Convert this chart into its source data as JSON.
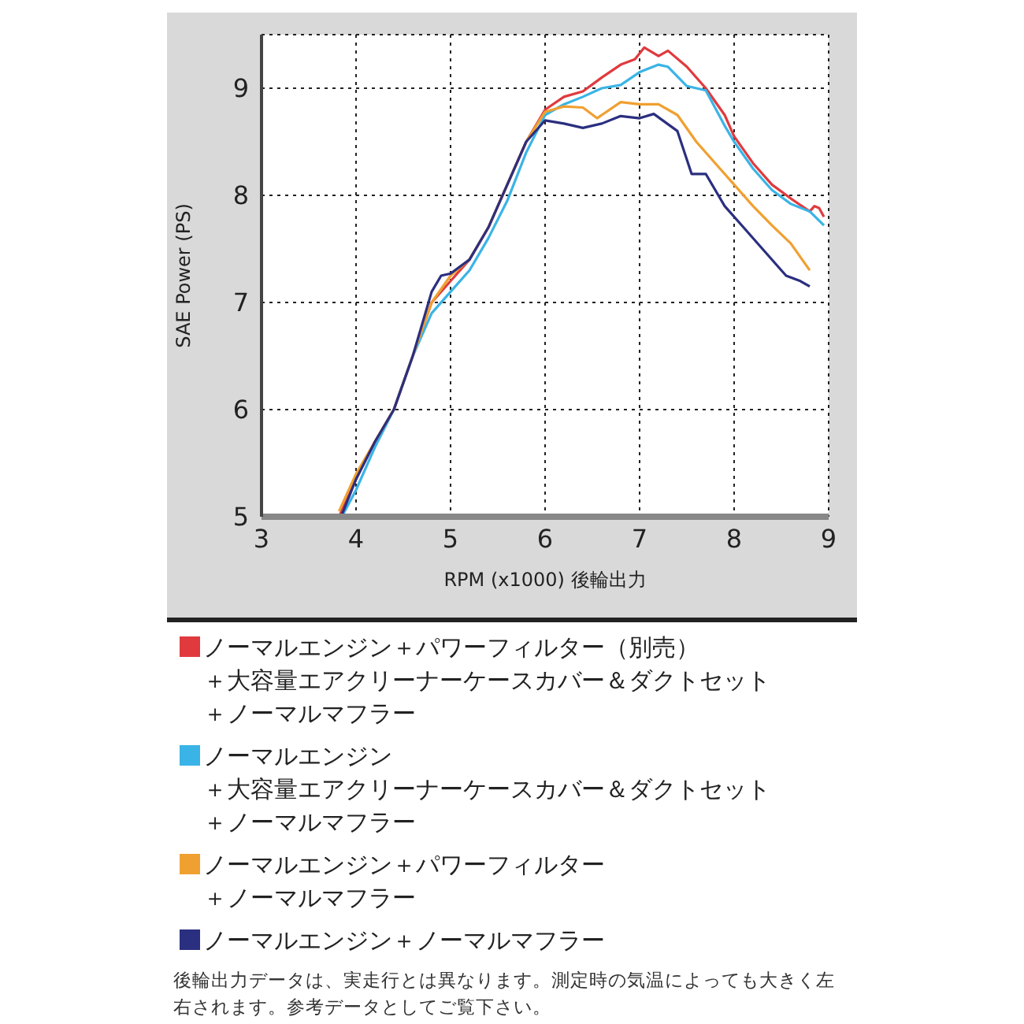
{
  "chart_data": {
    "type": "line",
    "xlabel": "RPM (x1000) 後輪出力",
    "ylabel": "SAE Power (PS)",
    "xlim": [
      3,
      9
    ],
    "ylim": [
      5,
      9.5
    ],
    "xticks": [
      3,
      4,
      5,
      6,
      7,
      8,
      9
    ],
    "yticks": [
      5,
      6,
      7,
      8,
      9
    ],
    "grid": true,
    "line_style": "solid",
    "marker": "none",
    "legend": "bottom",
    "series": [
      {
        "name": "ノーマルエンジン＋パワーフィルター（別売）＋大容量エアクリーナーケースカバー＆ダクトセット＋ノーマルマフラー",
        "color": "#e03a3e",
        "x": [
          3.82,
          4.0,
          4.2,
          4.4,
          4.6,
          4.8,
          5.0,
          5.2,
          5.4,
          5.6,
          5.8,
          6.0,
          6.2,
          6.4,
          6.6,
          6.8,
          6.95,
          7.05,
          7.2,
          7.3,
          7.5,
          7.7,
          7.9,
          8.0,
          8.2,
          8.4,
          8.6,
          8.8,
          8.85,
          8.9,
          8.95
        ],
        "values": [
          5.0,
          5.35,
          5.7,
          6.0,
          6.5,
          7.0,
          7.2,
          7.4,
          7.7,
          8.1,
          8.5,
          8.8,
          8.92,
          8.97,
          9.1,
          9.22,
          9.27,
          9.38,
          9.3,
          9.35,
          9.2,
          9.0,
          8.75,
          8.55,
          8.3,
          8.1,
          7.97,
          7.85,
          7.9,
          7.88,
          7.8
        ]
      },
      {
        "name": "ノーマルエンジン＋大容量エアクリーナーケースカバー＆ダクトセット＋ノーマルマフラー",
        "color": "#3ab4e6",
        "x": [
          3.85,
          4.0,
          4.2,
          4.4,
          4.6,
          4.8,
          5.0,
          5.2,
          5.4,
          5.6,
          5.8,
          6.0,
          6.2,
          6.4,
          6.6,
          6.8,
          7.0,
          7.2,
          7.3,
          7.5,
          7.7,
          7.9,
          8.0,
          8.2,
          8.4,
          8.6,
          8.8,
          8.95
        ],
        "values": [
          5.0,
          5.25,
          5.65,
          6.0,
          6.5,
          6.9,
          7.1,
          7.3,
          7.6,
          7.95,
          8.4,
          8.75,
          8.85,
          8.92,
          9.0,
          9.03,
          9.15,
          9.22,
          9.2,
          9.02,
          8.98,
          8.65,
          8.5,
          8.25,
          8.05,
          7.92,
          7.85,
          7.72
        ]
      },
      {
        "name": "ノーマルエンジン＋パワーフィルター＋ノーマルマフラー",
        "color": "#f0a030",
        "x": [
          3.82,
          4.0,
          4.2,
          4.4,
          4.6,
          4.8,
          5.0,
          5.2,
          5.4,
          5.6,
          5.8,
          6.0,
          6.2,
          6.4,
          6.55,
          6.8,
          7.0,
          7.2,
          7.4,
          7.6,
          7.8,
          8.0,
          8.2,
          8.4,
          8.6,
          8.8
        ],
        "values": [
          5.05,
          5.4,
          5.7,
          6.0,
          6.5,
          7.0,
          7.25,
          7.4,
          7.7,
          8.1,
          8.5,
          8.78,
          8.83,
          8.82,
          8.72,
          8.87,
          8.85,
          8.85,
          8.75,
          8.5,
          8.3,
          8.1,
          7.9,
          7.72,
          7.55,
          7.3
        ]
      },
      {
        "name": "ノーマルエンジン＋ノーマルマフラー",
        "color": "#2b2f80",
        "x": [
          3.85,
          4.0,
          4.2,
          4.4,
          4.6,
          4.8,
          4.9,
          5.0,
          5.2,
          5.4,
          5.6,
          5.8,
          6.0,
          6.2,
          6.4,
          6.6,
          6.8,
          7.0,
          7.15,
          7.4,
          7.55,
          7.7,
          7.9,
          8.1,
          8.3,
          8.5,
          8.55,
          8.7,
          8.8
        ],
        "values": [
          5.02,
          5.35,
          5.7,
          6.0,
          6.5,
          7.1,
          7.25,
          7.27,
          7.4,
          7.7,
          8.1,
          8.5,
          8.7,
          8.67,
          8.63,
          8.67,
          8.74,
          8.72,
          8.76,
          8.6,
          8.2,
          8.2,
          7.9,
          7.7,
          7.5,
          7.3,
          7.25,
          7.2,
          7.15
        ]
      }
    ],
    "annotations": [
      "後輪出力データは、実走行とは異なります。測定時の気温によっても大きく左右されます。参考データとしてご覧下さい。"
    ]
  }
}
